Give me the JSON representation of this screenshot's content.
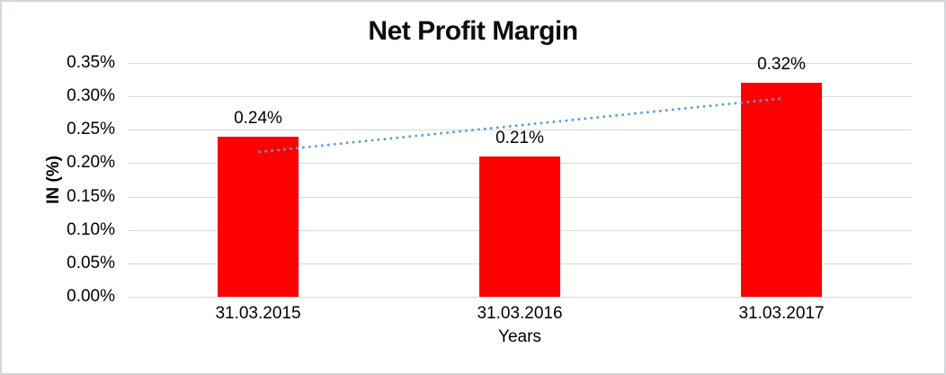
{
  "chart_data": {
    "type": "bar",
    "title": "Net Profit Margin",
    "xlabel": "Years",
    "ylabel": "IN (%)",
    "categories": [
      "31.03.2015",
      "31.03.2016",
      "31.03.2017"
    ],
    "values": [
      0.24,
      0.21,
      0.32
    ],
    "data_labels": [
      "0.24%",
      "0.21%",
      "0.32%"
    ],
    "ylim": [
      0,
      0.35
    ],
    "ytick_step": 0.05,
    "ytick_labels": [
      "0.00%",
      "0.05%",
      "0.10%",
      "0.15%",
      "0.20%",
      "0.25%",
      "0.30%",
      "0.35%"
    ],
    "grid": true,
    "legend_position": "none",
    "bar_color": "#FF0000",
    "gridline_color": "#D9D9D9",
    "text_color": "#000000",
    "trendline": {
      "type": "linear",
      "style": "dotted",
      "color": "#5B9BD5"
    }
  }
}
